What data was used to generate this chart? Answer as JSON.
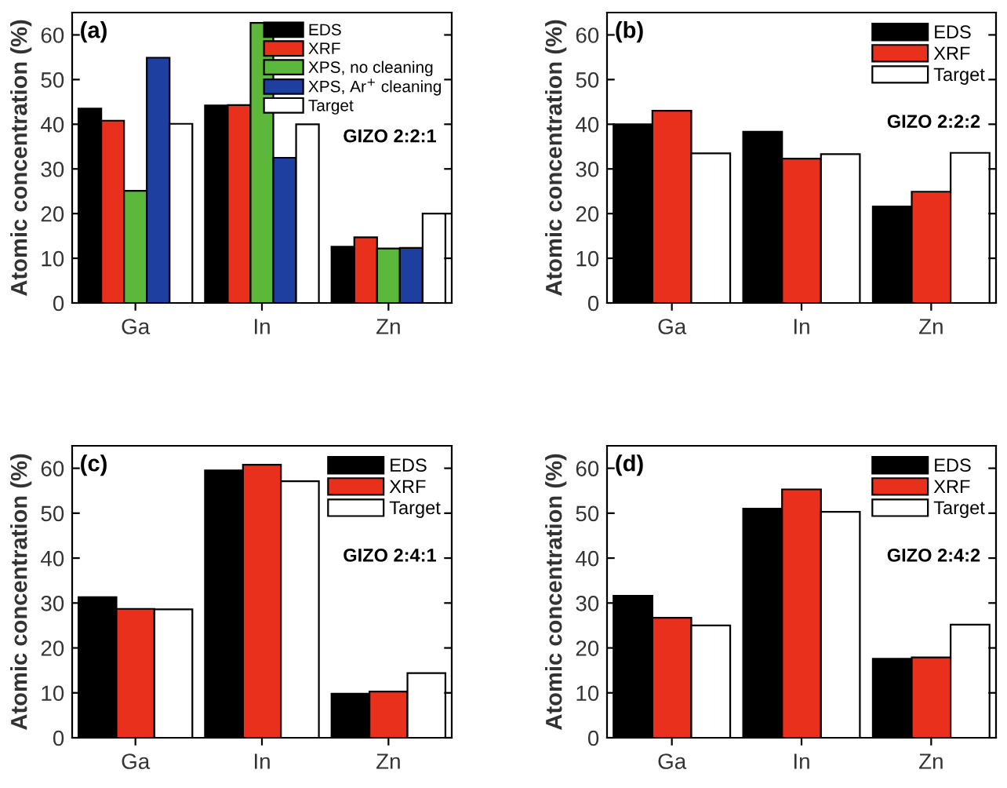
{
  "chart_data": [
    {
      "type": "bar",
      "title": "(a)",
      "ylabel": "Atomic concentration (%)",
      "categories": [
        "Ga",
        "In",
        "Zn"
      ],
      "annotations": [
        "GIZO 2:2:1"
      ],
      "ylim": [
        0,
        65
      ],
      "yticks": [
        0,
        10,
        20,
        30,
        40,
        50,
        60
      ],
      "legend": "top right",
      "series": [
        {
          "name": "EDS",
          "color": "#000000",
          "values": [
            43.5,
            44.2,
            12.6
          ]
        },
        {
          "name": "XRF",
          "color": "#e8301c",
          "values": [
            40.8,
            44.3,
            14.7
          ]
        },
        {
          "name": "XPS, no cleaning",
          "color": "#5cb83a",
          "values": [
            25.1,
            62.7,
            12.2
          ]
        },
        {
          "name": "XPS, Ar$^{+}$ cleaning",
          "color": "#1f3fa0",
          "values": [
            54.9,
            32.5,
            12.3
          ]
        },
        {
          "name": "Target",
          "color": "#ffffff",
          "values": [
            40.1,
            40.0,
            20.0
          ]
        }
      ]
    },
    {
      "type": "bar",
      "title": "(b)",
      "ylabel": "Atomic concentration (%)",
      "categories": [
        "Ga",
        "In",
        "Zn"
      ],
      "annotations": [
        "GIZO 2:2:2"
      ],
      "ylim": [
        0,
        65
      ],
      "yticks": [
        0,
        10,
        20,
        30,
        40,
        50,
        60
      ],
      "legend": "top right",
      "series": [
        {
          "name": "EDS",
          "color": "#000000",
          "values": [
            40.0,
            38.3,
            21.6
          ]
        },
        {
          "name": "XRF",
          "color": "#e8301c",
          "values": [
            43.0,
            32.3,
            24.9
          ]
        },
        {
          "name": "Target",
          "color": "#ffffff",
          "values": [
            33.5,
            33.3,
            33.6
          ]
        }
      ]
    },
    {
      "type": "bar",
      "title": "(c)",
      "ylabel": "Atomic concentration (%)",
      "categories": [
        "Ga",
        "In",
        "Zn"
      ],
      "annotations": [
        "GIZO 2:4:1"
      ],
      "ylim": [
        0,
        65
      ],
      "yticks": [
        0,
        10,
        20,
        30,
        40,
        50,
        60
      ],
      "legend": "top right",
      "series": [
        {
          "name": "EDS",
          "color": "#000000",
          "values": [
            31.3,
            59.5,
            9.8
          ]
        },
        {
          "name": "XRF",
          "color": "#e8301c",
          "values": [
            28.7,
            60.8,
            10.3
          ]
        },
        {
          "name": "Target",
          "color": "#ffffff",
          "values": [
            28.6,
            57.1,
            14.4
          ]
        }
      ]
    },
    {
      "type": "bar",
      "title": "(d)",
      "ylabel": "Atomic concentration (%)",
      "categories": [
        "Ga",
        "In",
        "Zn"
      ],
      "annotations": [
        "GIZO 2:4:2"
      ],
      "ylim": [
        0,
        65
      ],
      "yticks": [
        0,
        10,
        20,
        30,
        40,
        50,
        60
      ],
      "legend": "top right",
      "series": [
        {
          "name": "EDS",
          "color": "#000000",
          "values": [
            31.6,
            51.0,
            17.6
          ]
        },
        {
          "name": "XRF",
          "color": "#e8301c",
          "values": [
            26.7,
            55.3,
            17.9
          ]
        },
        {
          "name": "Target",
          "color": "#ffffff",
          "values": [
            25.0,
            50.3,
            25.2
          ]
        }
      ]
    }
  ]
}
